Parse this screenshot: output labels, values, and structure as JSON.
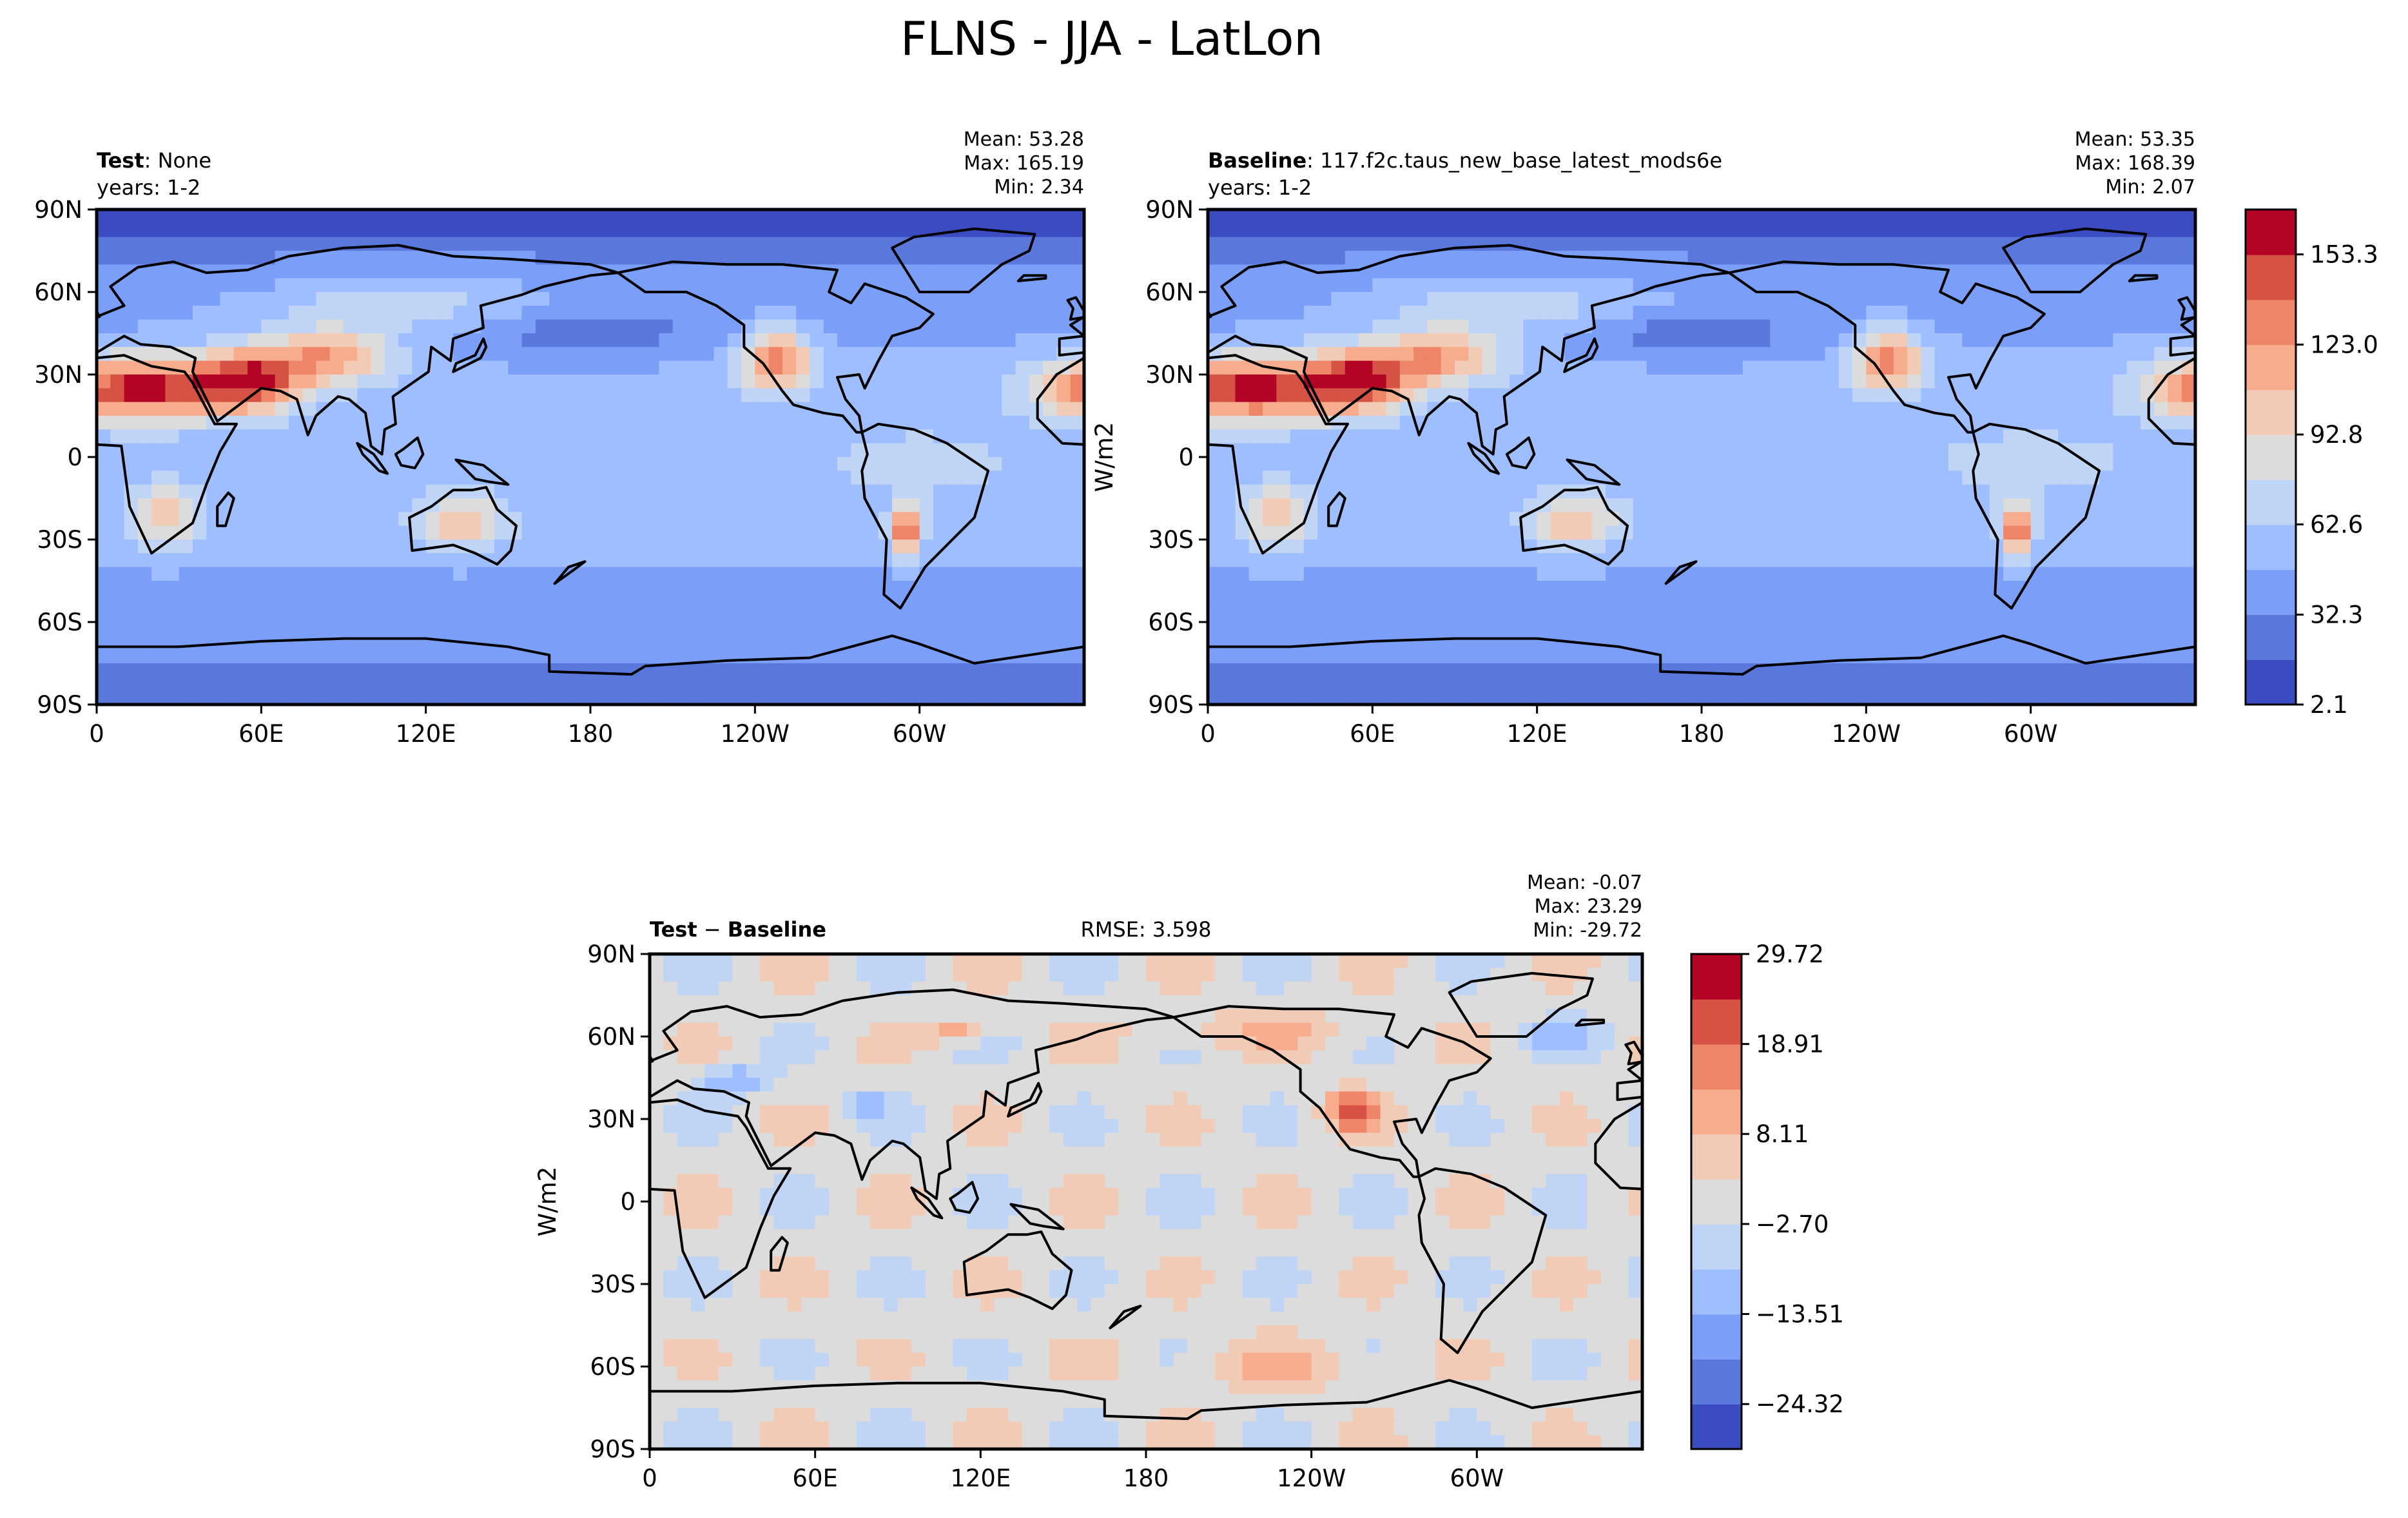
{
  "figure": {
    "title": "FLNS - JJA - LatLon"
  },
  "colors": {
    "cmap": [
      "#3b4cc0",
      "#5a77db",
      "#7b9ff9",
      "#9ebeff",
      "#c0d4f5",
      "#dddcdc",
      "#f2cbb7",
      "#f7ac8e",
      "#ee8468",
      "#d65244",
      "#b40426"
    ],
    "land_outline": "#000000"
  },
  "chart_data": [
    {
      "type": "heatmap",
      "name": "test-panel",
      "label_bold": "Test",
      "label_rest": ": None",
      "years": "years: 1-2",
      "stats": [
        "Mean: 53.28",
        "Max: 165.19",
        "Min:  2.34"
      ],
      "xlabel": "",
      "ylabel": "",
      "xlim": [
        0,
        360
      ],
      "ylim": [
        -90,
        90
      ],
      "x_ticks": [
        "0",
        "60E",
        "120E",
        "180",
        "120W",
        "60W"
      ],
      "y_ticks": [
        "90N",
        "60N",
        "30N",
        "0",
        "30S",
        "60S",
        "90S"
      ],
      "mean": 53.28,
      "max": 165.19,
      "min": 2.34
    },
    {
      "type": "heatmap",
      "name": "baseline-panel",
      "label_bold": "Baseline",
      "label_rest": ": 117.f2c.taus_new_base_latest_mods6e",
      "years": "years: 1-2",
      "stats": [
        "Mean: 53.35",
        "Max: 168.39",
        "Min:  2.07"
      ],
      "xlabel": "",
      "ylabel": "W/m2",
      "xlim": [
        0,
        360
      ],
      "ylim": [
        -90,
        90
      ],
      "x_ticks": [
        "0",
        "60E",
        "120E",
        "180",
        "120W",
        "60W"
      ],
      "y_ticks": [
        "90N",
        "60N",
        "30N",
        "0",
        "30S",
        "60S",
        "90S"
      ],
      "mean": 53.35,
      "max": 168.39,
      "min": 2.07,
      "colorbar": {
        "range": [
          2.1,
          168.39
        ],
        "labels": [
          "153.3",
          "123.0",
          "92.8",
          "62.6",
          "32.3",
          "2.1"
        ],
        "label_values": [
          153.3,
          123.0,
          92.8,
          62.6,
          32.3,
          2.1
        ]
      }
    },
    {
      "type": "heatmap",
      "name": "difference-panel",
      "label_bold": "Test",
      "label_minus": " − ",
      "label_bold2": "Baseline",
      "rmse": "RMSE: 3.598",
      "stats": [
        "Mean: -0.07",
        "Max: 23.29",
        "Min: -29.72"
      ],
      "xlabel": "",
      "ylabel": "W/m2",
      "xlim": [
        0,
        360
      ],
      "ylim": [
        -90,
        90
      ],
      "x_ticks": [
        "0",
        "60E",
        "120E",
        "180",
        "120W",
        "60W"
      ],
      "y_ticks": [
        "90N",
        "60N",
        "30N",
        "0",
        "30S",
        "60S",
        "90S"
      ],
      "mean": -0.07,
      "max": 23.29,
      "min": -29.72,
      "colorbar": {
        "range": [
          -29.72,
          29.72
        ],
        "labels": [
          "29.72",
          "18.91",
          "8.11",
          "−2.70",
          "−13.51",
          "−24.32"
        ],
        "label_values": [
          29.72,
          18.91,
          8.11,
          -2.7,
          -13.51,
          -24.32
        ]
      }
    }
  ]
}
